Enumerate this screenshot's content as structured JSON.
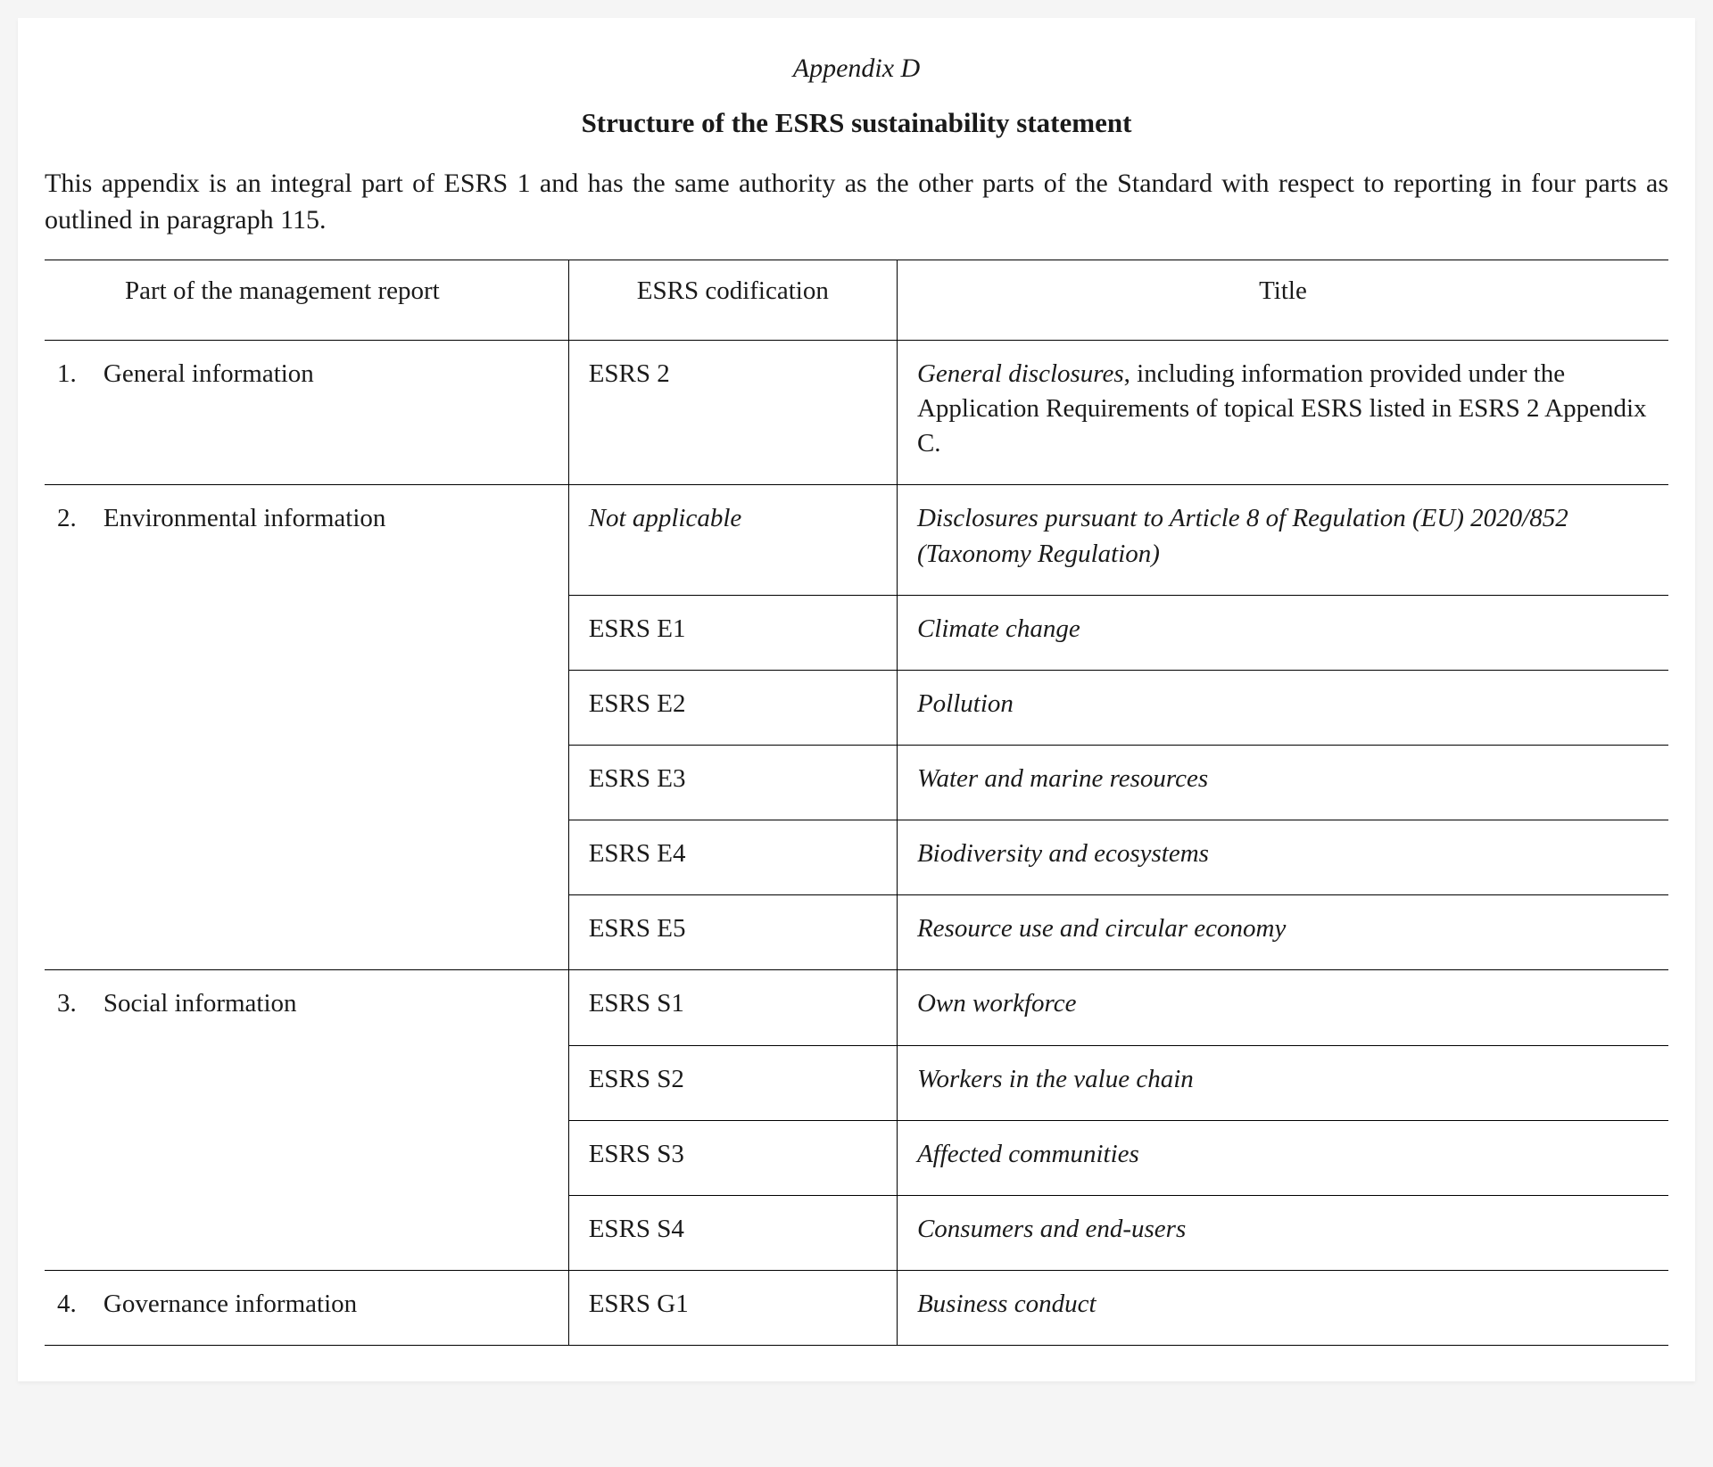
{
  "page": {
    "appendix_label": "Appendix D",
    "title": "Structure of the ESRS sustainability statement",
    "intro": "This appendix is an integral part of ESRS 1 and has the same authority as the other parts of the Standard with respect to reporting in four parts as outlined in paragraph 115."
  },
  "table": {
    "columns": {
      "part": "Part of the management report",
      "code": "ESRS codification",
      "title": "Title"
    },
    "rows": [
      {
        "num": "1.",
        "part": "General information",
        "code": "ESRS 2",
        "code_italic": false,
        "title_lead": "General disclosures",
        "title_rest": ", including information provided under the Application Requirements of topical ESRS listed in ESRS 2 Appendix C.",
        "title_mixed": true
      },
      {
        "num": "2.",
        "part": "Environmental information",
        "code": "Not applicable",
        "code_italic": true,
        "title": "Disclosures pursuant to Article 8 of Regulation (EU) 2020/852 (Taxonomy Regulation)",
        "title_italic": true,
        "span_start": true
      },
      {
        "num": "",
        "part": "",
        "code": "ESRS E1",
        "title": "Climate change",
        "title_italic": true,
        "span_cont": true
      },
      {
        "num": "",
        "part": "",
        "code": "ESRS E2",
        "title": "Pollution",
        "title_italic": true,
        "span_cont": true
      },
      {
        "num": "",
        "part": "",
        "code": "ESRS E3",
        "title": "Water and marine resources",
        "title_italic": true,
        "span_cont": true
      },
      {
        "num": "",
        "part": "",
        "code": "ESRS E4",
        "title": "Biodiversity and ecosystems",
        "title_italic": true,
        "span_cont": true
      },
      {
        "num": "",
        "part": "",
        "code": "ESRS E5",
        "title": "Resource use and circular economy",
        "title_italic": true,
        "span_end": true
      },
      {
        "num": "3.",
        "part": "Social information",
        "code": "ESRS S1",
        "title": "Own workforce",
        "title_italic": true,
        "span_start": true
      },
      {
        "num": "",
        "part": "",
        "code": "ESRS S2",
        "title": "Workers in the value chain",
        "title_italic": true,
        "span_cont": true
      },
      {
        "num": "",
        "part": "",
        "code": "ESRS S3",
        "title": "Affected communities",
        "title_italic": true,
        "span_cont": true
      },
      {
        "num": "",
        "part": "",
        "code": "ESRS S4",
        "title": "Consumers and end-users",
        "title_italic": true,
        "span_end": true
      },
      {
        "num": "4.",
        "part": "Governance information",
        "code": "ESRS G1",
        "title": "Business conduct",
        "title_italic": true
      }
    ]
  },
  "styling": {
    "background_color": "#ffffff",
    "page_bg": "#f5f5f5",
    "text_color": "#1a1a1a",
    "border_color": "#000000",
    "border_width": 1.5,
    "font_family": "Georgia, 'Times New Roman', serif",
    "base_fontsize": 29,
    "title_fontsize": 31,
    "appendix_fontsize": 30,
    "intro_fontsize": 30,
    "col_widths": {
      "num": 50,
      "part": 540,
      "code": 370,
      "title": 870
    }
  }
}
